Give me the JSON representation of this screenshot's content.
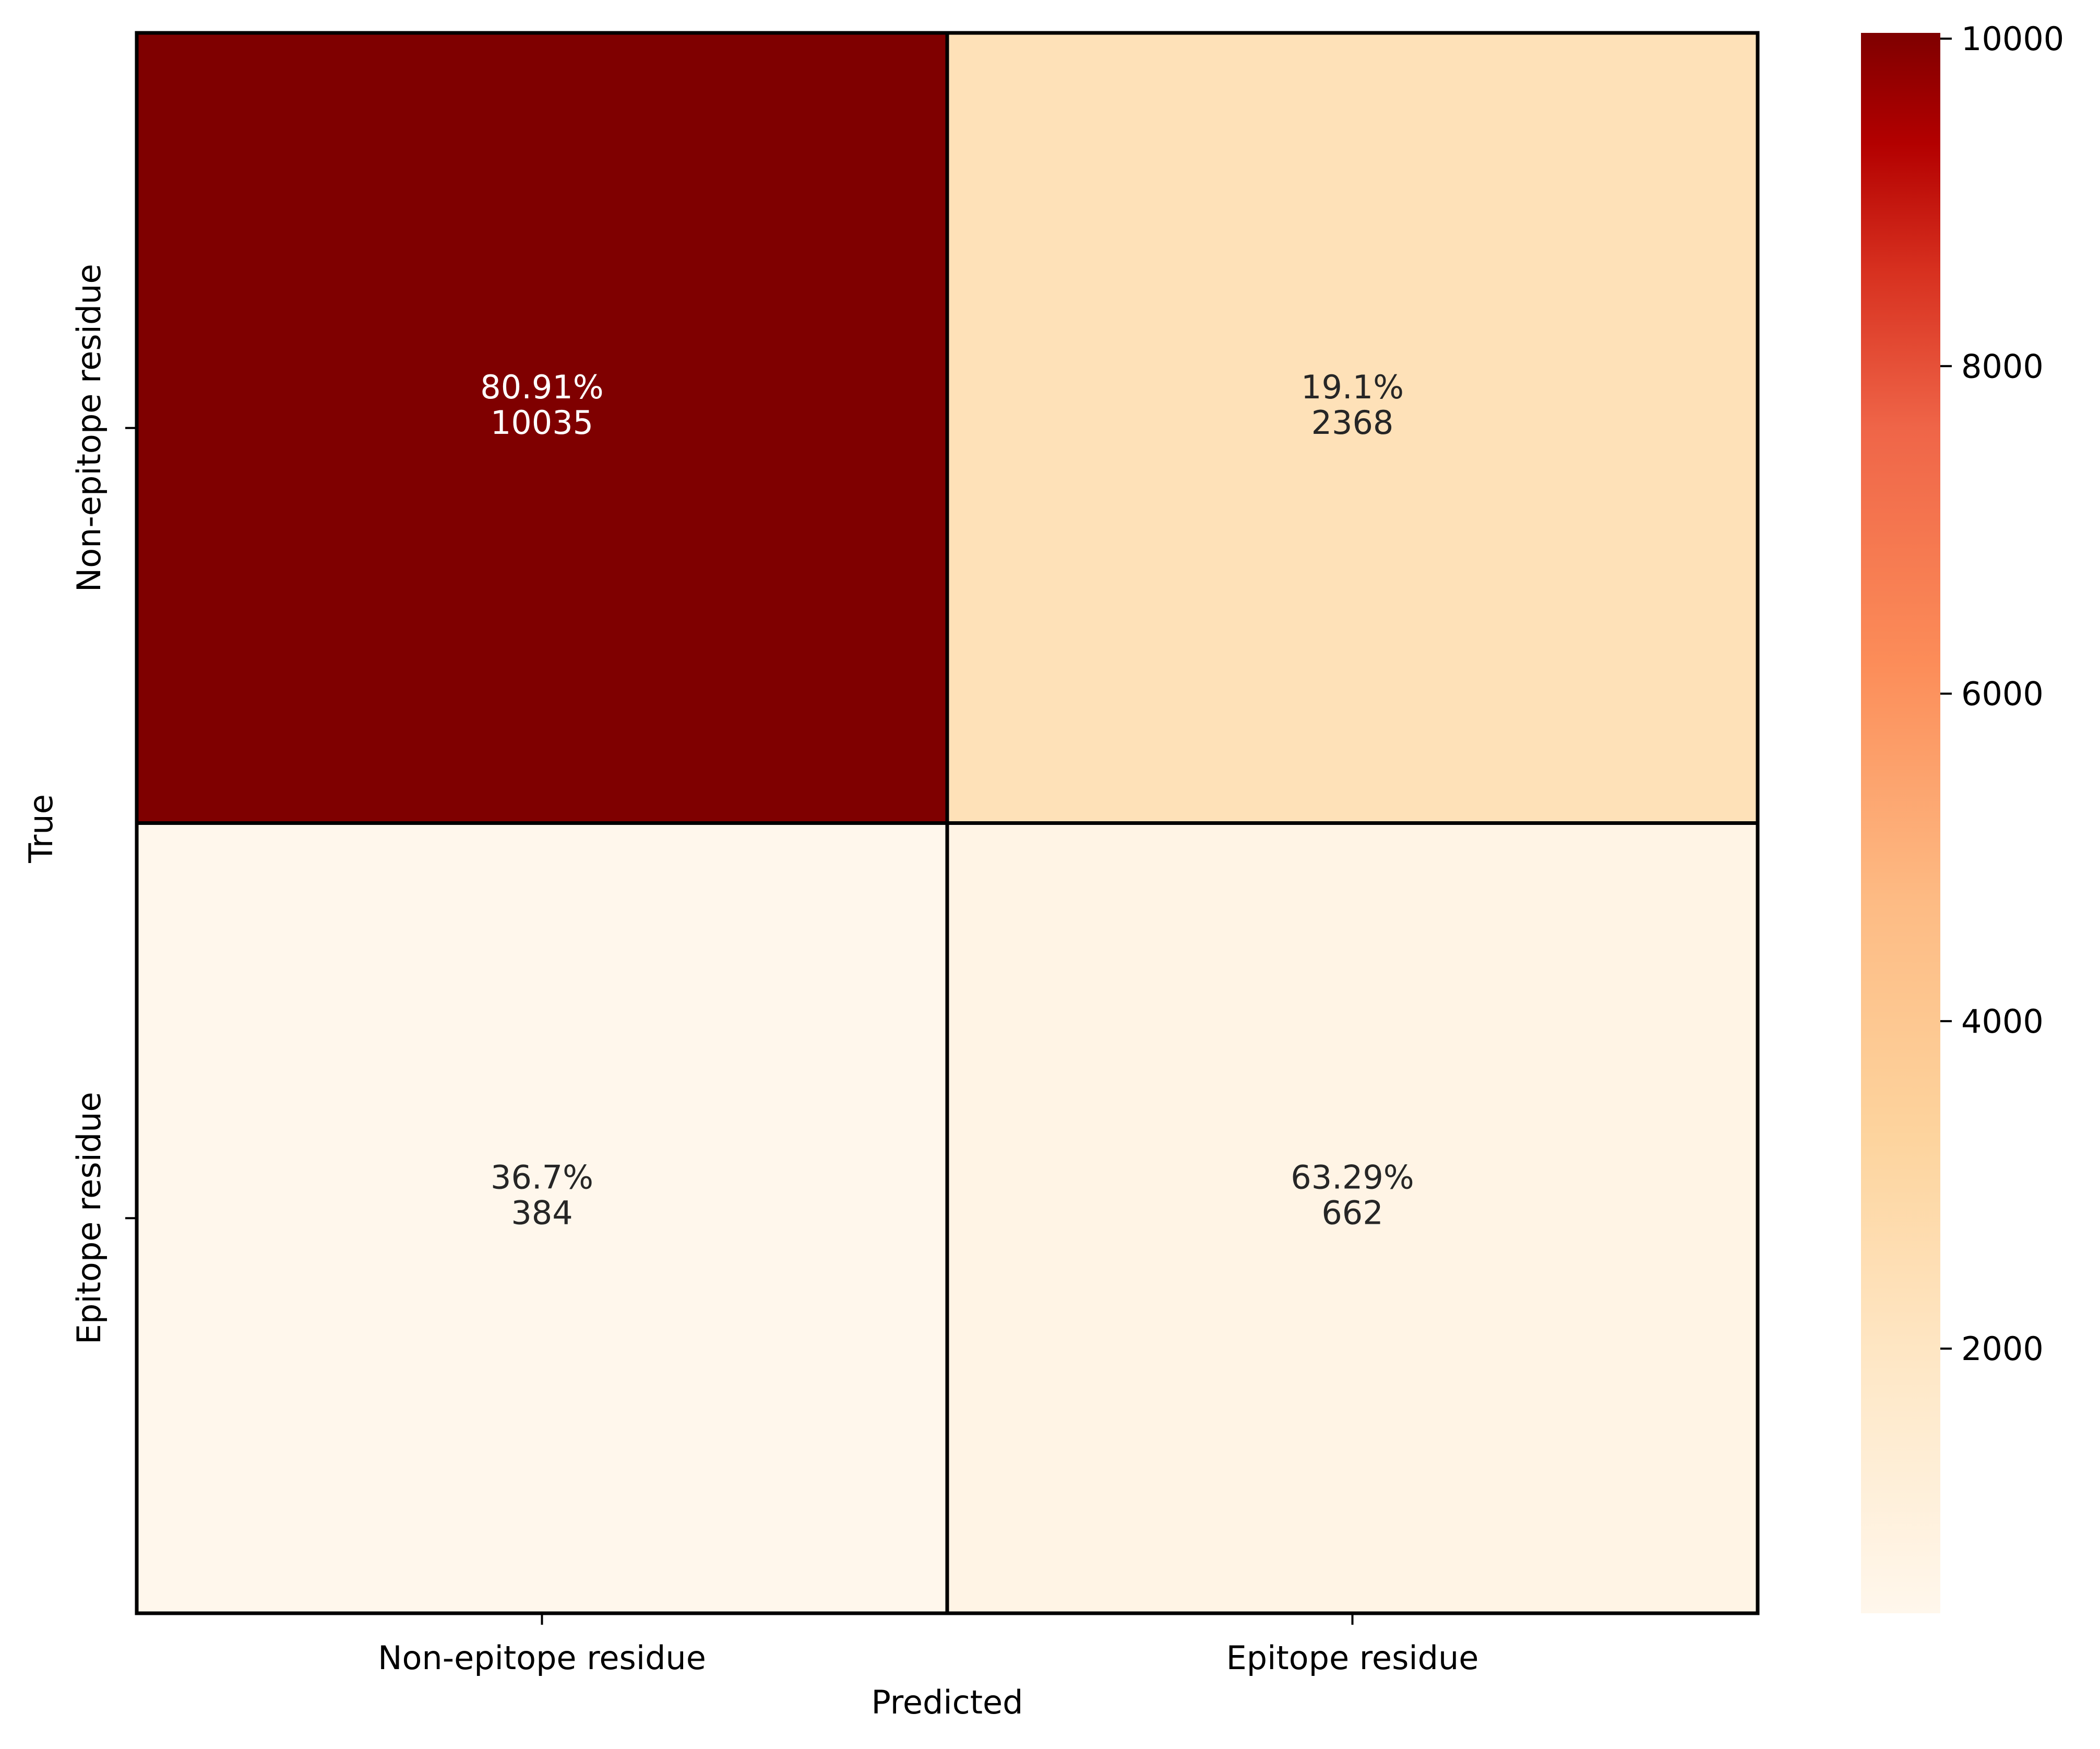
{
  "chart_data": {
    "type": "heatmap",
    "title": "",
    "xlabel": "Predicted",
    "ylabel": "True",
    "x_categories": [
      "Non-epitope residue",
      "Epitope residue"
    ],
    "y_categories": [
      "Non-epitope residue",
      "Epitope residue"
    ],
    "cells": [
      [
        {
          "count": 10035,
          "percent_label": "80.91%",
          "count_label": "10035"
        },
        {
          "count": 2368,
          "percent_label": "19.1%",
          "count_label": "2368"
        }
      ],
      [
        {
          "count": 384,
          "percent_label": "36.7%",
          "count_label": "384"
        },
        {
          "count": 662,
          "percent_label": "63.29%",
          "count_label": "662"
        }
      ]
    ],
    "colorbar": {
      "colormap": "OrRd",
      "range": [
        384,
        10035
      ],
      "ticks": [
        2000,
        4000,
        6000,
        8000,
        10000
      ],
      "tick_labels": [
        "2000",
        "4000",
        "6000",
        "8000",
        "10000"
      ]
    },
    "grid_lines": true,
    "legend": "colorbar-right"
  }
}
